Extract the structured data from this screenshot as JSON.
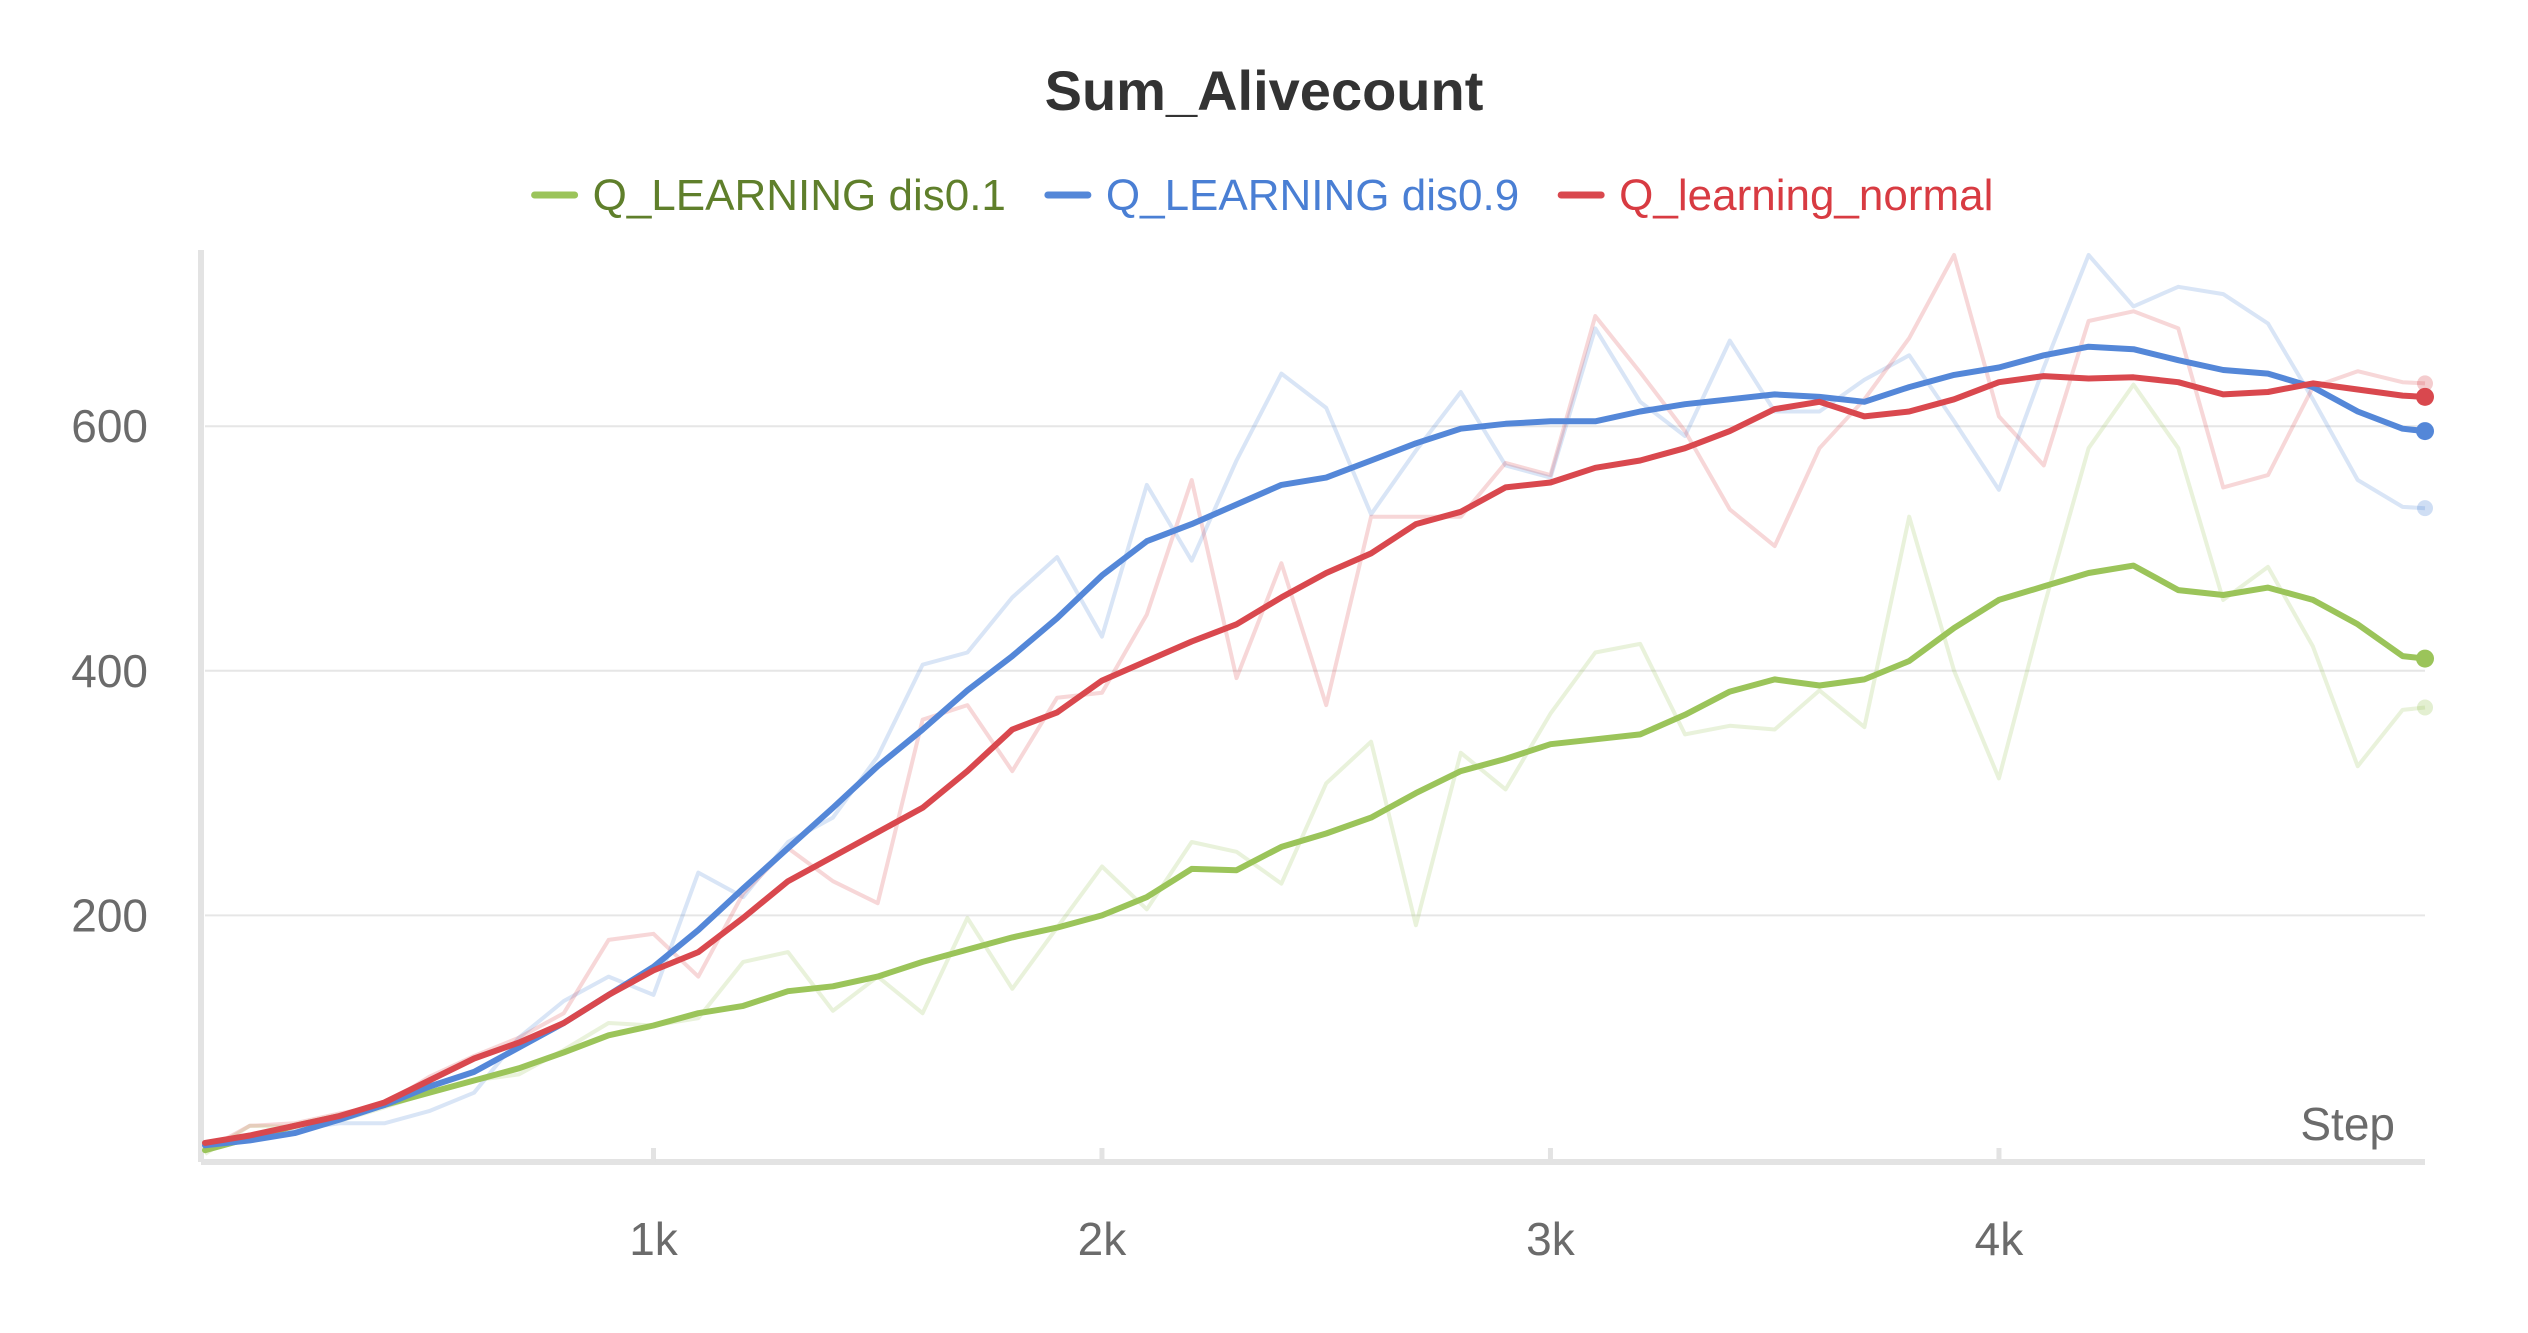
{
  "chart_data": {
    "type": "line",
    "title": "Sum_Alivecount",
    "xlabel": "Step",
    "ylabel": "",
    "xlim": [
      0,
      4950
    ],
    "ylim": [
      0,
      740
    ],
    "x_ticks": [
      1000,
      2000,
      3000,
      4000
    ],
    "x_tick_labels": [
      "1k",
      "2k",
      "3k",
      "4k"
    ],
    "y_ticks": [
      200,
      400,
      600
    ],
    "y_tick_labels": [
      "200",
      "400",
      "600"
    ],
    "grid": true,
    "legend_position": "top-center",
    "x": [
      0,
      100,
      200,
      300,
      400,
      500,
      600,
      700,
      800,
      900,
      1000,
      1100,
      1200,
      1300,
      1400,
      1500,
      1600,
      1700,
      1800,
      1900,
      2000,
      2100,
      2200,
      2300,
      2400,
      2500,
      2600,
      2700,
      2800,
      2900,
      3000,
      3100,
      3200,
      3300,
      3400,
      3500,
      3600,
      3700,
      3800,
      3900,
      4000,
      4100,
      4200,
      4300,
      4400,
      4500,
      4600,
      4700,
      4800,
      4900,
      4950
    ],
    "series": [
      {
        "name": "Q_LEARNING dis0.1",
        "color": "#9bc45a",
        "legend_text_color": "#5f7f2b",
        "smoothed": [
          8,
          18,
          28,
          36,
          45,
          55,
          65,
          75,
          88,
          102,
          110,
          120,
          126,
          138,
          142,
          150,
          162,
          172,
          182,
          190,
          200,
          215,
          238,
          237,
          256,
          267,
          280,
          300,
          318,
          328,
          340,
          344,
          348,
          364,
          383,
          393,
          388,
          393,
          408,
          435,
          458,
          469,
          480,
          486,
          466,
          462,
          468,
          458,
          438,
          412,
          410
        ],
        "raw": [
          5,
          28,
          27,
          32,
          43,
          55,
          65,
          70,
          90,
          112,
          110,
          116,
          162,
          170,
          122,
          150,
          120,
          198,
          140,
          190,
          240,
          205,
          260,
          252,
          226,
          308,
          342,
          192,
          333,
          303,
          365,
          415,
          422,
          348,
          355,
          352,
          384,
          354,
          526,
          400,
          312,
          452,
          582,
          634,
          582,
          458,
          485,
          420,
          322,
          368,
          370
        ]
      },
      {
        "name": "Q_LEARNING dis0.9",
        "color": "#5487d8",
        "legend_text_color": "#4a7fd4",
        "smoothed": [
          12,
          16,
          22,
          33,
          45,
          60,
          72,
          92,
          112,
          135,
          158,
          188,
          222,
          255,
          288,
          322,
          352,
          384,
          412,
          443,
          478,
          506,
          520,
          536,
          552,
          558,
          572,
          586,
          598,
          602,
          604,
          604,
          612,
          618,
          622,
          626,
          624,
          620,
          632,
          642,
          648,
          658,
          665,
          663,
          654,
          646,
          643,
          632,
          612,
          598,
          596
        ],
        "raw": [
          10,
          20,
          25,
          30,
          30,
          40,
          55,
          100,
          130,
          150,
          135,
          235,
          215,
          260,
          280,
          330,
          405,
          415,
          460,
          493,
          428,
          552,
          490,
          572,
          643,
          615,
          528,
          580,
          628,
          568,
          558,
          680,
          620,
          592,
          670,
          612,
          612,
          638,
          658,
          604,
          548,
          648,
          740,
          698,
          714,
          708,
          684,
          622,
          556,
          534,
          533
        ]
      },
      {
        "name": "Q_learning_normal",
        "color": "#d9484e",
        "legend_text_color": "#d83b42",
        "smoothed": [
          14,
          20,
          28,
          36,
          47,
          65,
          83,
          96,
          112,
          135,
          155,
          170,
          198,
          228,
          248,
          268,
          288,
          318,
          352,
          366,
          392,
          408,
          424,
          438,
          460,
          480,
          496,
          520,
          530,
          550,
          554,
          566,
          572,
          582,
          596,
          614,
          620,
          608,
          612,
          622,
          636,
          641,
          639,
          640,
          636,
          626,
          628,
          635,
          630,
          625,
          624
        ],
        "raw": [
          8,
          28,
          30,
          38,
          45,
          68,
          85,
          100,
          120,
          180,
          185,
          150,
          218,
          255,
          228,
          210,
          360,
          372,
          318,
          378,
          382,
          446,
          556,
          394,
          488,
          372,
          526,
          526,
          526,
          570,
          560,
          690,
          644,
          596,
          532,
          502,
          582,
          622,
          672,
          740,
          608,
          568,
          686,
          694,
          680,
          550,
          560,
          632,
          645,
          636,
          635
        ]
      }
    ]
  }
}
